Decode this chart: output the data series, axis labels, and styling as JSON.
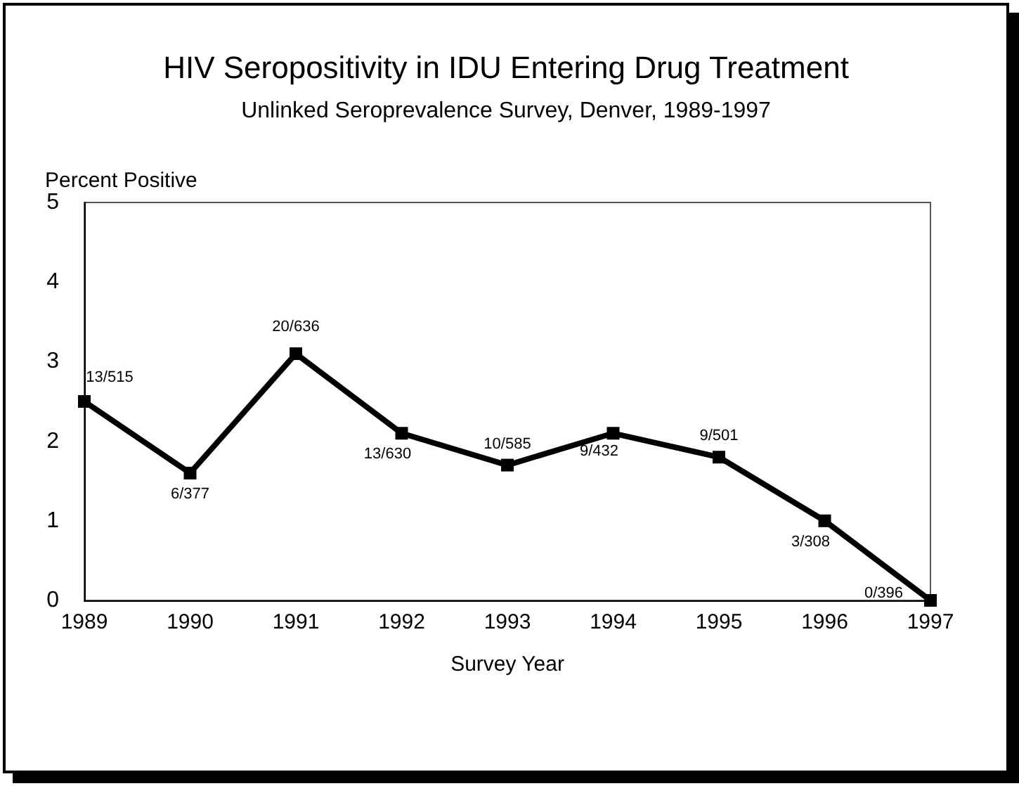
{
  "chart_data": {
    "type": "line",
    "title": "HIV Seropositivity in IDU Entering Drug Treatment",
    "subtitle": "Unlinked Seroprevalence Survey, Denver, 1989-1997",
    "xlabel": "Survey Year",
    "ylabel": "Percent Positive",
    "x": [
      1989,
      1990,
      1991,
      1992,
      1993,
      1994,
      1995,
      1996,
      1997
    ],
    "series": [
      {
        "color": "#000000",
        "values": [
          2.5,
          1.6,
          3.1,
          2.1,
          1.7,
          2.1,
          1.8,
          1.0,
          0.0
        ],
        "value_labels": [
          "13/515",
          "6/377",
          "20/636",
          "13/630",
          "10/585",
          "9/432",
          "9/501",
          "3/308",
          "0/396"
        ]
      }
    ],
    "xlim": [
      1989,
      1997
    ],
    "xticks": [
      1989,
      1990,
      1991,
      1992,
      1993,
      1994,
      1995,
      1996,
      1997
    ],
    "ylim": [
      0,
      5
    ],
    "yticks": [
      0,
      1,
      2,
      3,
      4,
      5
    ],
    "grid": false,
    "marker": "square",
    "line_style": "solid"
  }
}
